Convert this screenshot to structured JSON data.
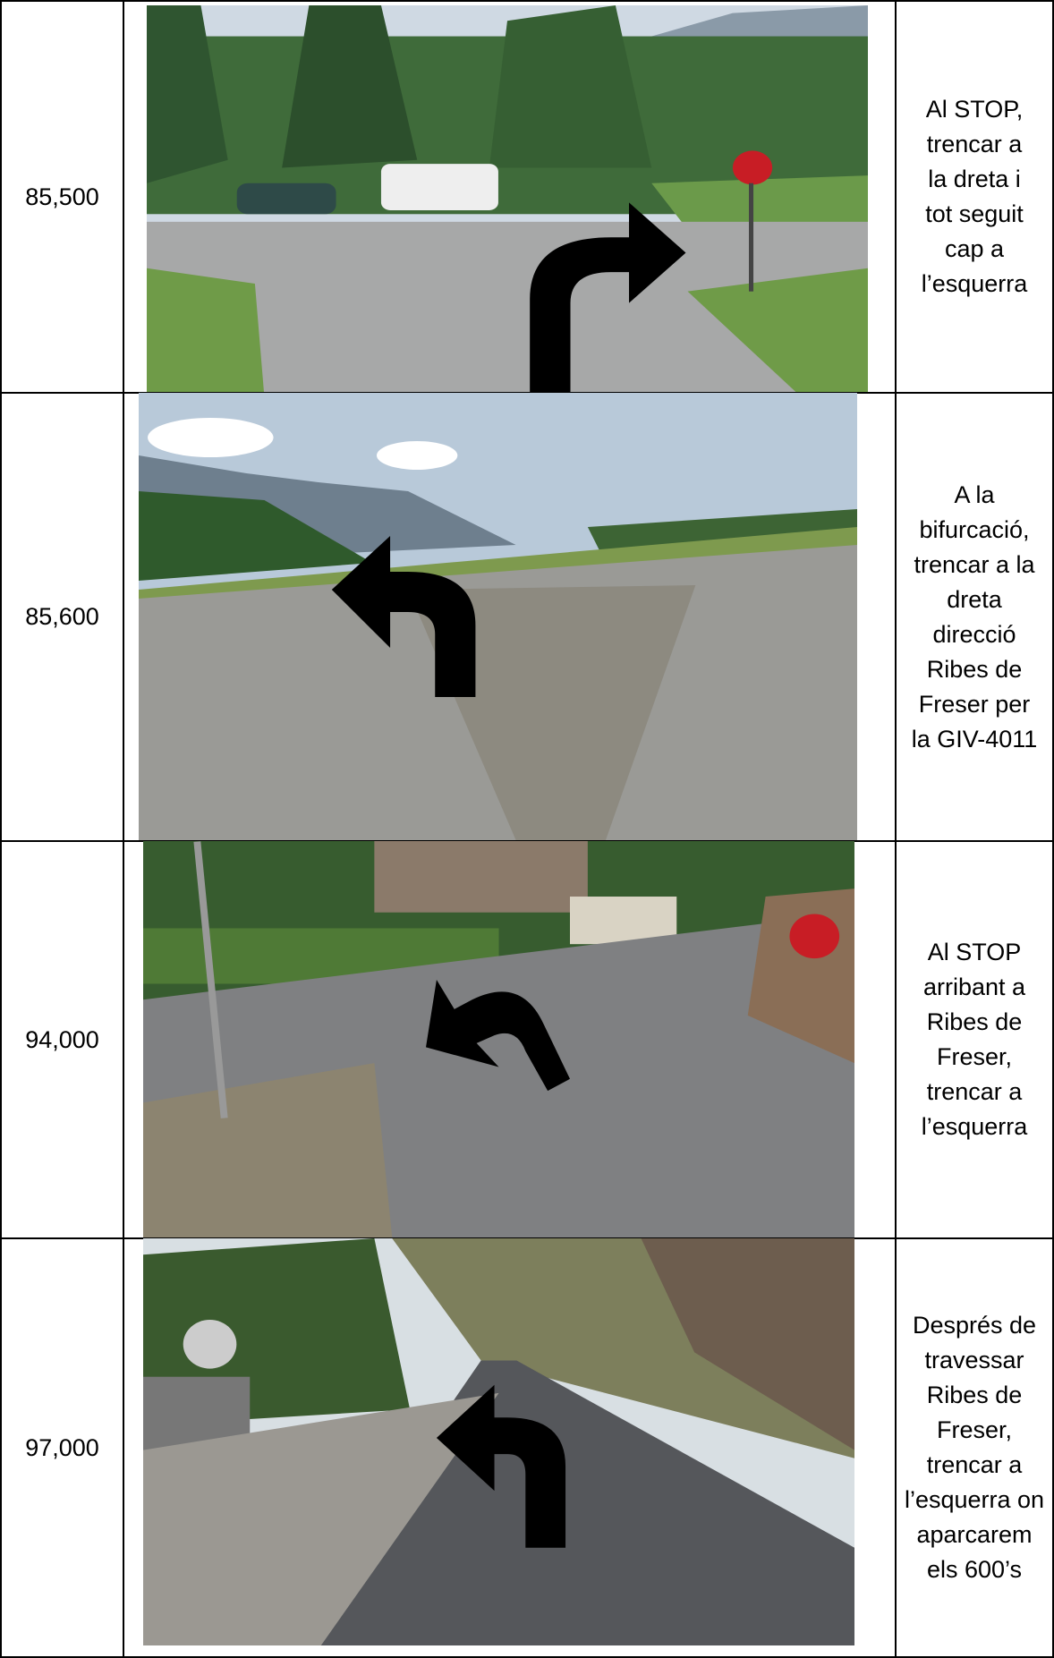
{
  "table": {
    "rows": [
      {
        "km": "85,500",
        "lines": [
          "Al STOP,",
          "trencar a",
          "la dreta i",
          "tot seguit",
          "cap a",
          "l’esquerra"
        ]
      },
      {
        "km": "85,600",
        "lines": [
          "A la",
          "bifurcació,",
          "trencar a la",
          "dreta",
          "direcció",
          "Ribes de",
          "Freser per",
          "la GIV-4011"
        ]
      },
      {
        "km": "94,000",
        "lines": [
          "Al STOP",
          "arribant a",
          "Ribes de",
          "Freser,",
          "trencar a",
          "l’esquerra"
        ]
      },
      {
        "km": "97,000",
        "lines": [
          "Després de",
          "travessar",
          "Ribes de",
          "Freser,",
          "trencar a",
          "l’esquerra on",
          "aparcarem",
          "els 600’s"
        ]
      }
    ]
  }
}
